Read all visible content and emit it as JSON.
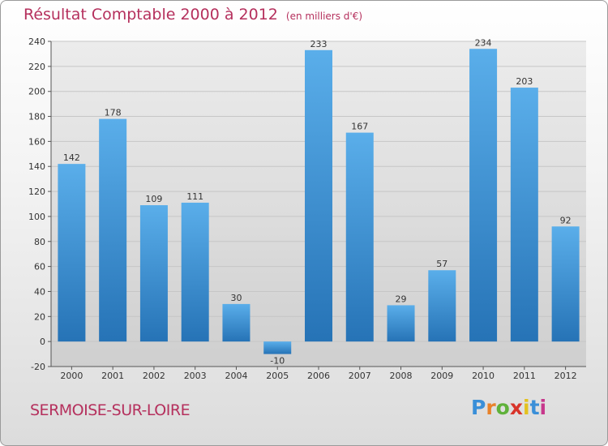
{
  "title": "Résultat Comptable 2000 à 2012",
  "unit_label": "(en milliers d'€)",
  "city": "SERMOISE-SUR-LOIRE",
  "logo": {
    "letters": [
      "P",
      "r",
      "o",
      "x",
      "i",
      "t",
      "i"
    ],
    "colors": [
      "#3a8fd8",
      "#e8822a",
      "#5fb13a",
      "#d8342a",
      "#e3c21f",
      "#3a8fd8",
      "#c7388c"
    ]
  },
  "colors": {
    "bar_light": "#5aaeea",
    "bar_dark": "#2673b6",
    "title": "#b5305d",
    "grid": "#c6c6c6"
  },
  "chart_data": {
    "type": "bar",
    "categories": [
      "2000",
      "2001",
      "2002",
      "2003",
      "2004",
      "2005",
      "2006",
      "2007",
      "2008",
      "2009",
      "2010",
      "2011",
      "2012"
    ],
    "values": [
      142,
      178,
      109,
      111,
      30,
      -10,
      233,
      167,
      29,
      57,
      234,
      203,
      92
    ],
    "data_labels": [
      "142",
      "178",
      "109",
      "111",
      "30",
      "-10",
      "233",
      "167",
      "29",
      "57",
      "234",
      "203",
      "92"
    ],
    "ylim": [
      -20,
      240
    ],
    "yticks": [
      -20,
      0,
      20,
      40,
      60,
      80,
      100,
      120,
      140,
      160,
      180,
      200,
      220,
      240
    ],
    "grid": true
  }
}
